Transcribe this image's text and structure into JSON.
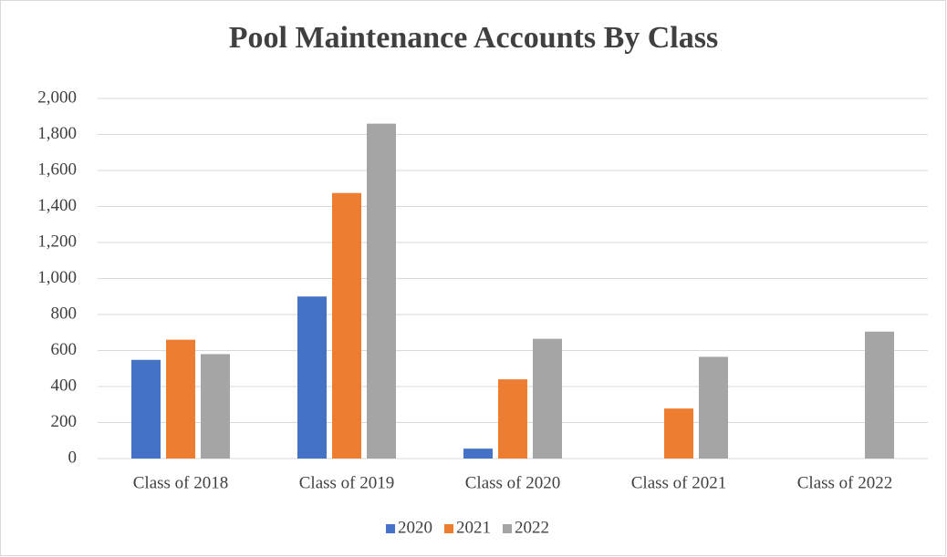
{
  "chart_data": {
    "type": "bar",
    "title": "Pool Maintenance Accounts By Class",
    "categories": [
      "Class of 2018",
      "Class of 2019",
      "Class of 2020",
      "Class of 2021",
      "Class of 2022"
    ],
    "series": [
      {
        "name": "2020",
        "color": "#4472c4",
        "values": [
          548,
          900,
          55,
          0,
          0
        ]
      },
      {
        "name": "2021",
        "color": "#ed7d31",
        "values": [
          660,
          1475,
          440,
          278,
          0
        ]
      },
      {
        "name": "2022",
        "color": "#a5a5a5",
        "values": [
          580,
          1860,
          665,
          565,
          705
        ]
      }
    ],
    "ylim": [
      0,
      2000
    ],
    "yticks": [
      0,
      200,
      400,
      600,
      800,
      {
        "value": 1000,
        "label": "1,000"
      },
      {
        "value": 1200,
        "label": "1,200"
      },
      {
        "value": 1400,
        "label": "1,400"
      },
      {
        "value": 1600,
        "label": "1,600"
      },
      {
        "value": 1800,
        "label": "1,800"
      },
      {
        "value": 2000,
        "label": "2,000"
      }
    ],
    "grid": true,
    "legend": "bottom"
  }
}
